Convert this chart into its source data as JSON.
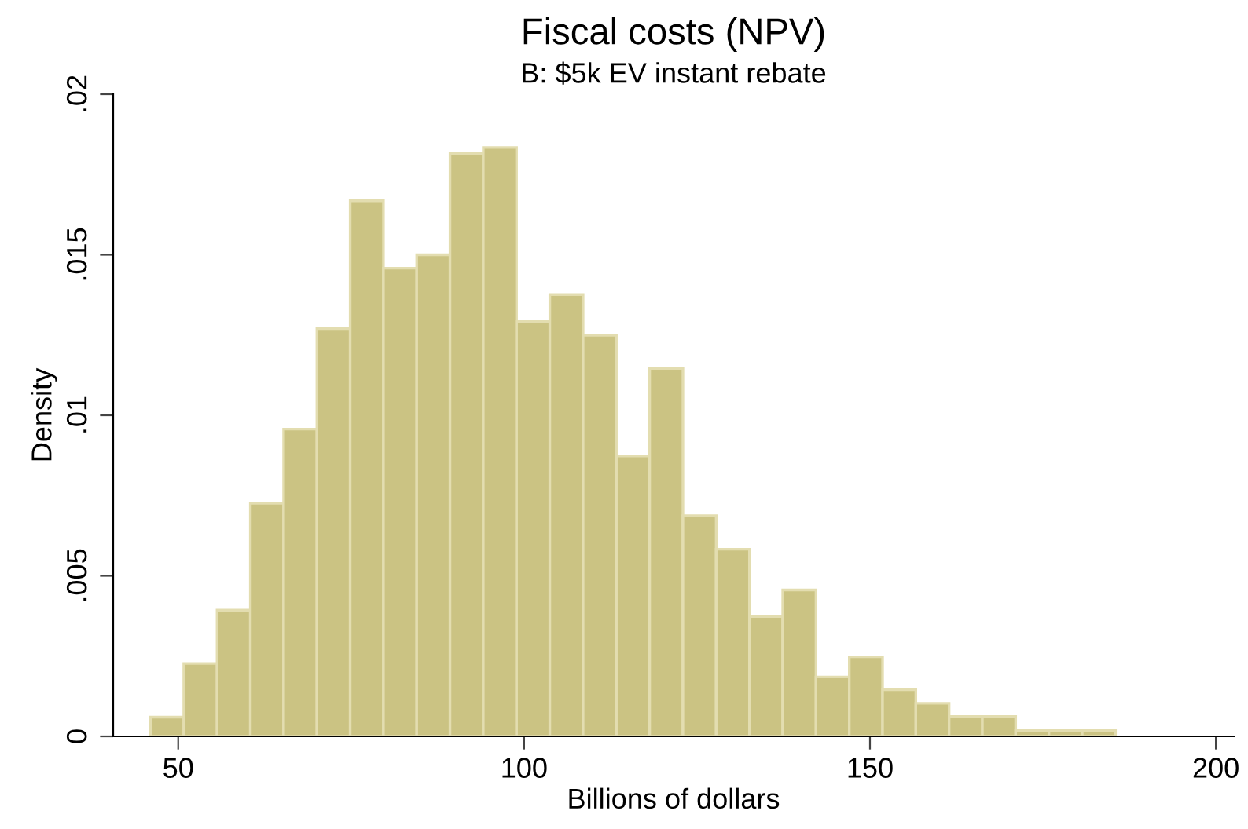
{
  "chart_data": {
    "type": "histogram",
    "title": "Fiscal costs (NPV)",
    "subtitle": "B: $5k EV instant rebate",
    "xlabel": "Billions of dollars",
    "ylabel": "Density",
    "color": "#cbc383",
    "bins": [
      46.0,
      50.81,
      55.62,
      60.43,
      65.24,
      70.05,
      74.86,
      79.67,
      84.48,
      89.29,
      94.1,
      98.91,
      103.72,
      108.53,
      113.34,
      118.15,
      122.96,
      127.77,
      132.58,
      137.39,
      142.2,
      147.01,
      151.82,
      156.63,
      161.44,
      166.25,
      171.06,
      175.87,
      180.68,
      185.49
    ],
    "values": [
      0.0006,
      0.00227,
      0.00393,
      0.00726,
      0.00957,
      0.0127,
      0.01668,
      0.01458,
      0.015,
      0.01816,
      0.01834,
      0.01292,
      0.01376,
      0.01249,
      0.00873,
      0.01146,
      0.00687,
      0.00583,
      0.00373,
      0.00456,
      0.00185,
      0.00248,
      0.00145,
      0.00103,
      0.00062,
      0.00062,
      0.00019,
      0.00019,
      0.00019
    ],
    "xlim": [
      40.6,
      202.6
    ],
    "xticks": [
      50,
      100,
      150,
      200
    ],
    "ylim": [
      0,
      0.02
    ],
    "yticks": [
      {
        "value": 0,
        "label": "0"
      },
      {
        "value": 0.005,
        "label": ".005"
      },
      {
        "value": 0.01,
        "label": ".01"
      },
      {
        "value": 0.015,
        "label": ".015"
      },
      {
        "value": 0.02,
        "label": ".02"
      }
    ],
    "grid": false
  }
}
